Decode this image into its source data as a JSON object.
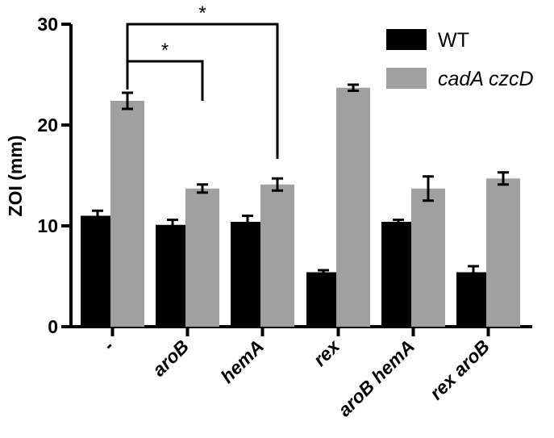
{
  "chart_data": {
    "type": "bar",
    "categories": [
      "-",
      "aroB",
      "hemA",
      "rex",
      "aroB hemA",
      "rex aroB"
    ],
    "ylabel": "ZOI (mm)",
    "ylim": [
      0,
      30
    ],
    "yticks": [
      0,
      10,
      20,
      30
    ],
    "grid": false,
    "legend_position": "top-right",
    "series": [
      {
        "name": "WT",
        "color": "#000000",
        "italic": false,
        "values": [
          11.0,
          10.1,
          10.4,
          5.4,
          10.4,
          5.4
        ],
        "errors": [
          0.5,
          0.5,
          0.6,
          0.2,
          0.2,
          0.6
        ]
      },
      {
        "name": "cadA czcD",
        "color": "#a0a0a0",
        "italic": true,
        "values": [
          22.4,
          13.7,
          14.1,
          23.7,
          13.7,
          14.7
        ],
        "errors": [
          0.8,
          0.4,
          0.6,
          0.3,
          1.2,
          0.6
        ]
      }
    ],
    "annotations": [
      {
        "label": "*",
        "from_category": "-",
        "to_category": "hemA"
      },
      {
        "label": "*",
        "from_category": "-",
        "to_category": "aroB"
      }
    ]
  }
}
